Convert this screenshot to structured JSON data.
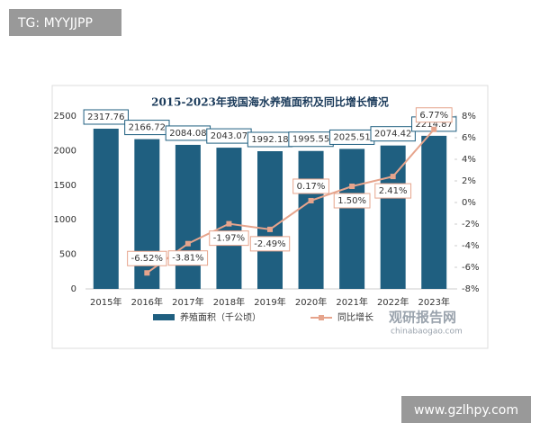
{
  "chart_data": {
    "type": "bar-line",
    "title": "2015-2023年我国海水养殖面积及同比增长情况",
    "categories": [
      "2015年",
      "2016年",
      "2017年",
      "2018年",
      "2019年",
      "2020年",
      "2021年",
      "2022年",
      "2023年"
    ],
    "series": [
      {
        "name": "养殖面积（千公顷）",
        "type": "bar",
        "color": "#1f5f80",
        "values": [
          2317.76,
          2166.72,
          2084.08,
          2043.07,
          1992.18,
          1995.55,
          2025.51,
          2074.42,
          2214.87
        ]
      },
      {
        "name": "同比增长",
        "type": "line",
        "color": "#e6a48c",
        "axis": "y2",
        "values": [
          null,
          -6.52,
          -3.81,
          -1.97,
          -2.49,
          0.17,
          1.5,
          2.41,
          6.77
        ],
        "value_labels": [
          null,
          "-6.52%",
          "-3.81%",
          "-1.97%",
          "-2.49%",
          "0.17%",
          "1.50%",
          "2.41%",
          "6.77%"
        ]
      }
    ],
    "ylim": [
      0,
      2500
    ],
    "yticks": [
      0,
      500,
      1000,
      1500,
      2000,
      2500
    ],
    "y2lim": [
      -8,
      8
    ],
    "y2ticks": [
      {
        "value": -8,
        "label": "-8%"
      },
      {
        "value": -6,
        "label": "-6%"
      },
      {
        "value": -4,
        "label": "-4%"
      },
      {
        "value": -2,
        "label": "-2%"
      },
      {
        "value": 0,
        "label": "0%"
      },
      {
        "value": 2,
        "label": "2%"
      },
      {
        "value": 4,
        "label": "4%"
      },
      {
        "value": 6,
        "label": "6%"
      },
      {
        "value": 8,
        "label": "8%"
      }
    ],
    "grid": false,
    "legend": "bottom"
  },
  "watermark": {
    "brand": "观研报告网",
    "url": "chinabaogao.com"
  },
  "overlay": {
    "tag": "TG: MYYJJPP",
    "site": "www.gzlhpy.com"
  }
}
